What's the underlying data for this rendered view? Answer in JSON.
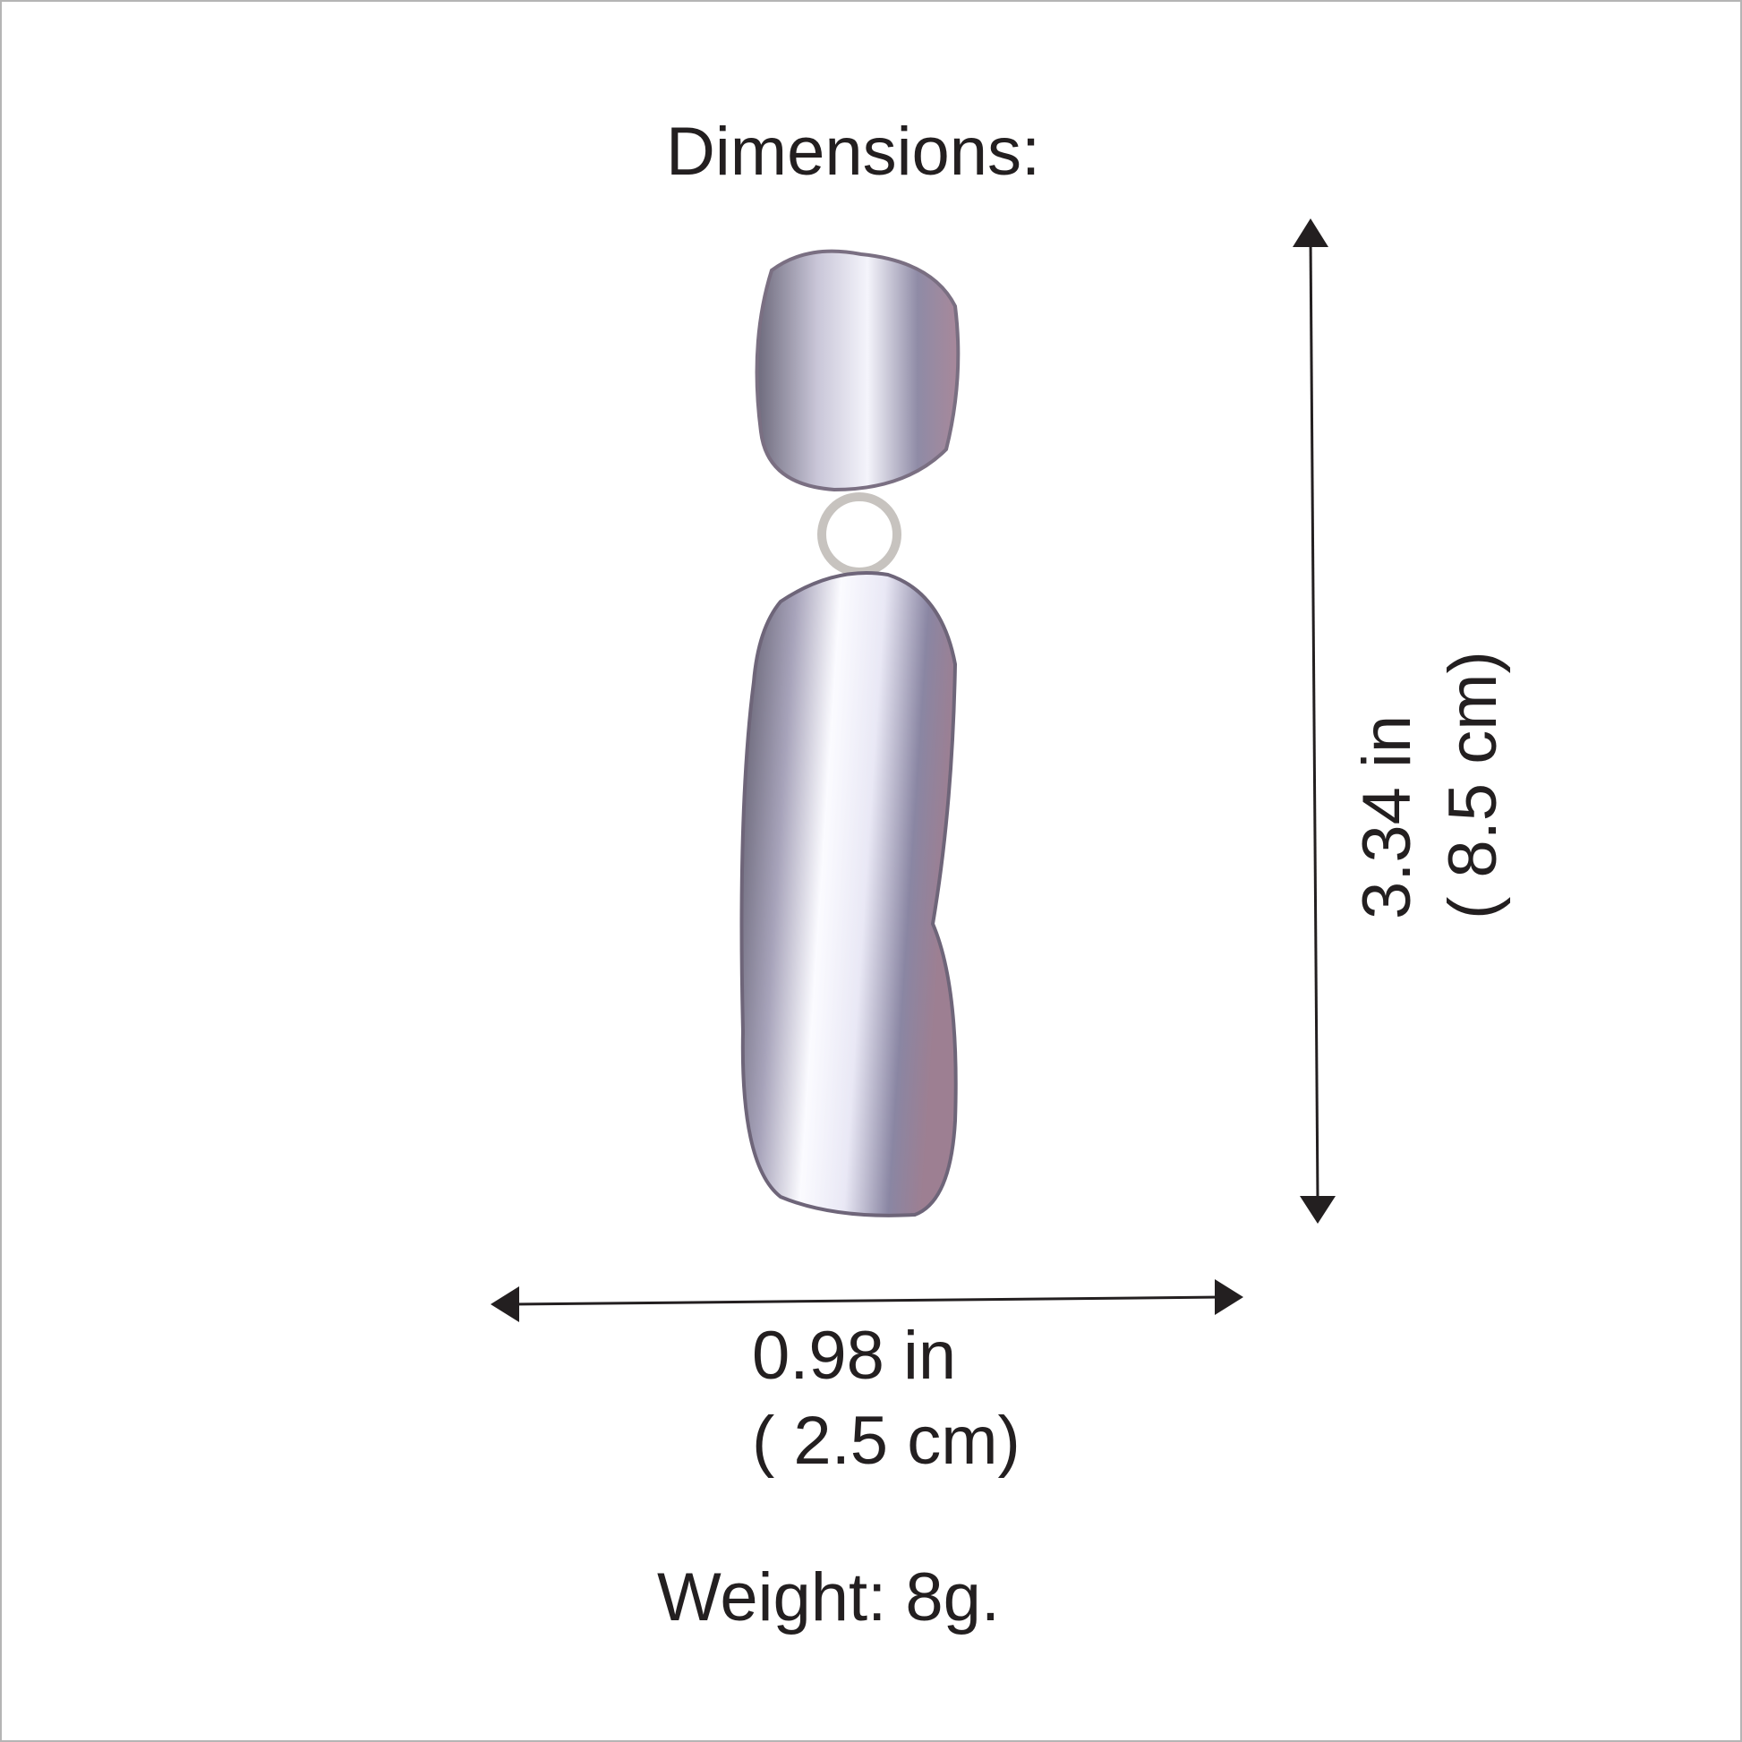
{
  "title": "Dimensions:",
  "height": {
    "imperial": "3.34 in",
    "metric": "( 8.5 cm)"
  },
  "width": {
    "imperial": "0.98 in",
    "metric": "( 2.5 cm)"
  },
  "weight": "Weight: 8g.",
  "colors": {
    "text": "#231f20",
    "arrow": "#231f20",
    "metal": "#b8b4c8"
  }
}
